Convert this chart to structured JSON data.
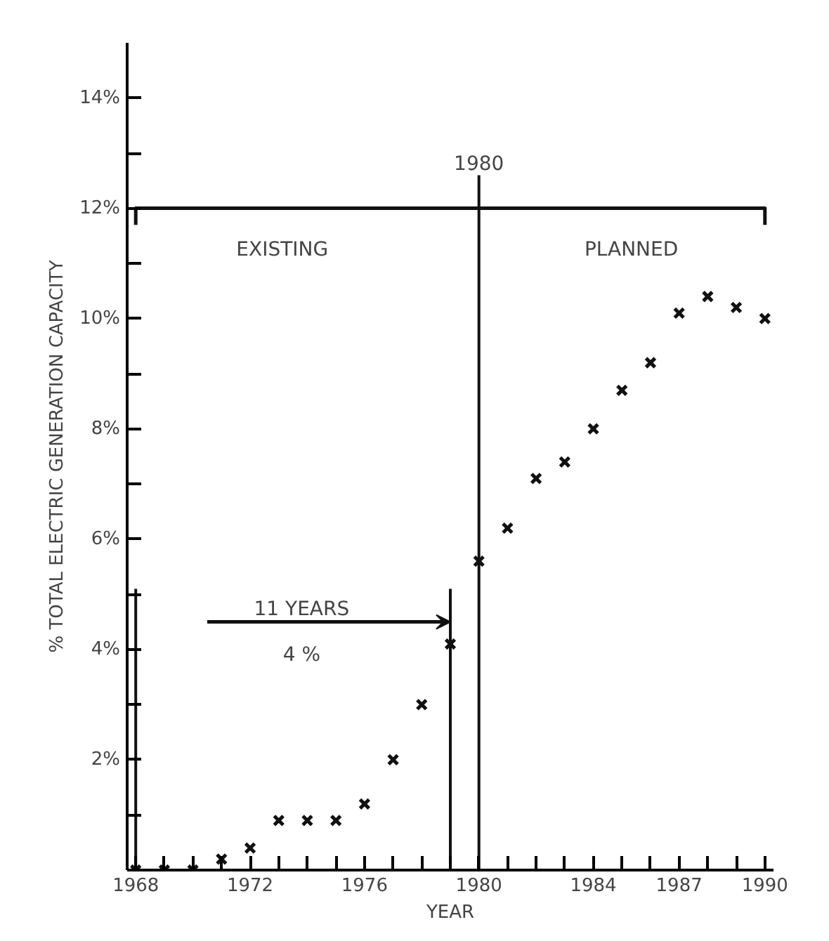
{
  "chart_data": {
    "type": "scatter",
    "xlabel": "YEAR",
    "ylabel": "% TOTAL ELECTRIC GENERATION CAPACITY",
    "x": [
      1968,
      1969,
      1970,
      1971,
      1972,
      1973,
      1974,
      1975,
      1976,
      1977,
      1978,
      1979,
      1980,
      1981,
      1982,
      1983,
      1984,
      1985,
      1986,
      1987,
      1988,
      1989,
      1990
    ],
    "series": [
      {
        "color": "#111111",
        "values": [
          0.0,
          0.0,
          0.0,
          0.2,
          0.4,
          0.9,
          0.9,
          0.9,
          1.2,
          2.0,
          3.0,
          4.1,
          5.6,
          6.2,
          7.1,
          7.4,
          8.0,
          8.7,
          9.2,
          10.1,
          10.4,
          10.2,
          10.0
        ]
      }
    ],
    "marker": "cross",
    "grid": false,
    "xlim": [
      1967.7,
      1990.3
    ],
    "xticks": [
      1968,
      {
        "value": 1969,
        "label": null
      },
      {
        "value": 1970,
        "label": null
      },
      {
        "value": 1971,
        "label": null
      },
      1972,
      {
        "value": 1973,
        "label": null
      },
      {
        "value": 1974,
        "label": null
      },
      {
        "value": 1975,
        "label": null
      },
      1976,
      {
        "value": 1977,
        "label": null
      },
      {
        "value": 1978,
        "label": null
      },
      {
        "value": 1979,
        "label": null
      },
      1980,
      {
        "value": 1981,
        "label": null
      },
      {
        "value": 1982,
        "label": null
      },
      {
        "value": 1983,
        "label": null
      },
      1984,
      {
        "value": 1985,
        "label": null
      },
      {
        "value": 1986,
        "label": null
      },
      1987,
      {
        "value": 1988,
        "label": null
      },
      {
        "value": 1989,
        "label": null
      },
      1990
    ],
    "ylim": [
      0,
      15
    ],
    "yticks": [
      {
        "value": 1,
        "label": null
      },
      {
        "value": 2,
        "label": "2%"
      },
      {
        "value": 3,
        "label": null
      },
      {
        "value": 4,
        "label": "4%"
      },
      {
        "value": 5,
        "label": null
      },
      {
        "value": 6,
        "label": "6%"
      },
      {
        "value": 7,
        "label": null
      },
      {
        "value": 8,
        "label": "8%"
      },
      {
        "value": 9,
        "label": null
      },
      {
        "value": 10,
        "label": "10%"
      },
      {
        "value": 11,
        "label": null
      },
      {
        "value": 12,
        "label": "12%"
      },
      {
        "value": 13,
        "label": null
      },
      {
        "value": 14,
        "label": "14%"
      }
    ],
    "ref_lines": [
      {
        "axis": "x",
        "value": 1980,
        "label": "1980"
      },
      {
        "axis": "x",
        "value": 1968,
        "label": null
      },
      {
        "axis": "x",
        "value": 1979,
        "label": null
      },
      {
        "axis": "y",
        "value": 12,
        "label": null
      }
    ],
    "annotations": [
      "EXISTING",
      "PLANNED",
      "11 YEARS",
      "4 %"
    ]
  }
}
